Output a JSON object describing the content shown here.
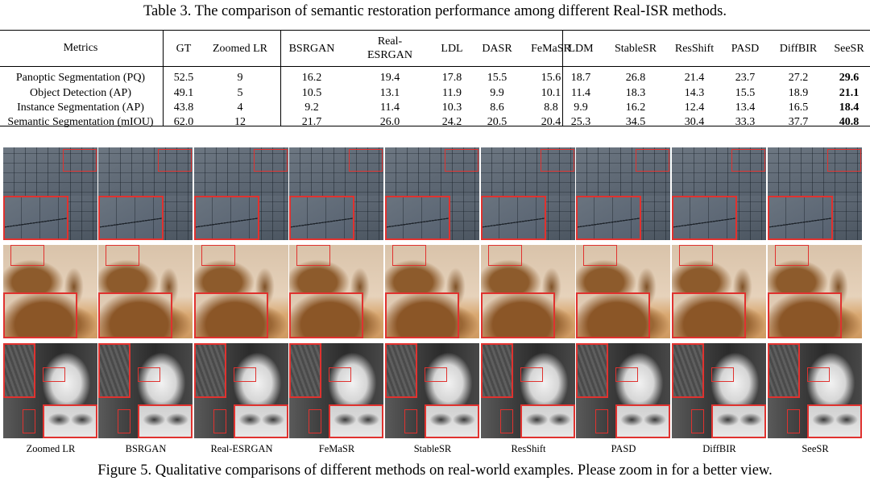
{
  "table_caption": "Table 3. The comparison of semantic restoration performance among different Real-ISR methods.",
  "table": {
    "header_metric": "Metrics",
    "columns": [
      "GT",
      "Zoomed LR",
      "BSRGAN",
      "Real-\nESRGAN",
      "LDL",
      "DASR",
      "FeMaSR",
      "LDM",
      "StableSR",
      "ResShift",
      "PASD",
      "DiffBIR",
      "SeeSR"
    ],
    "rows": [
      {
        "metric": "Panoptic Segmentation (PQ)",
        "values": [
          "52.5",
          "9",
          "16.2",
          "19.4",
          "17.8",
          "15.5",
          "15.6",
          "18.7",
          "26.8",
          "21.4",
          "23.7",
          "27.2",
          "29.6"
        ]
      },
      {
        "metric": "Object Detection (AP)",
        "values": [
          "49.1",
          "5",
          "10.5",
          "13.1",
          "11.9",
          "9.9",
          "10.1",
          "11.4",
          "18.3",
          "14.3",
          "15.5",
          "18.9",
          "21.1"
        ]
      },
      {
        "metric": "Instance Segmentation (AP)",
        "values": [
          "43.8",
          "4",
          "9.2",
          "11.4",
          "10.3",
          "8.6",
          "8.8",
          "9.9",
          "16.2",
          "12.4",
          "13.4",
          "16.5",
          "18.4"
        ]
      },
      {
        "metric": "Semantic Segmentation (mIOU)",
        "values": [
          "62.0",
          "12",
          "21.7",
          "26.0",
          "24.2",
          "20.5",
          "20.4",
          "25.3",
          "34.5",
          "30.4",
          "33.3",
          "37.7",
          "40.8"
        ]
      }
    ],
    "best_column": "SeeSR"
  },
  "figure": {
    "method_labels": [
      "Zoomed LR",
      "BSRGAN",
      "Real-ESRGAN",
      "FeMaSR",
      "StableSR",
      "ResShift",
      "PASD",
      "DiffBIR",
      "SeeSR"
    ],
    "caption": "Figure 5. Qualitative comparisons of different methods on real-world examples. Please zoom in for a better view."
  },
  "colors": {
    "highlight_box": "#e0322f"
  }
}
